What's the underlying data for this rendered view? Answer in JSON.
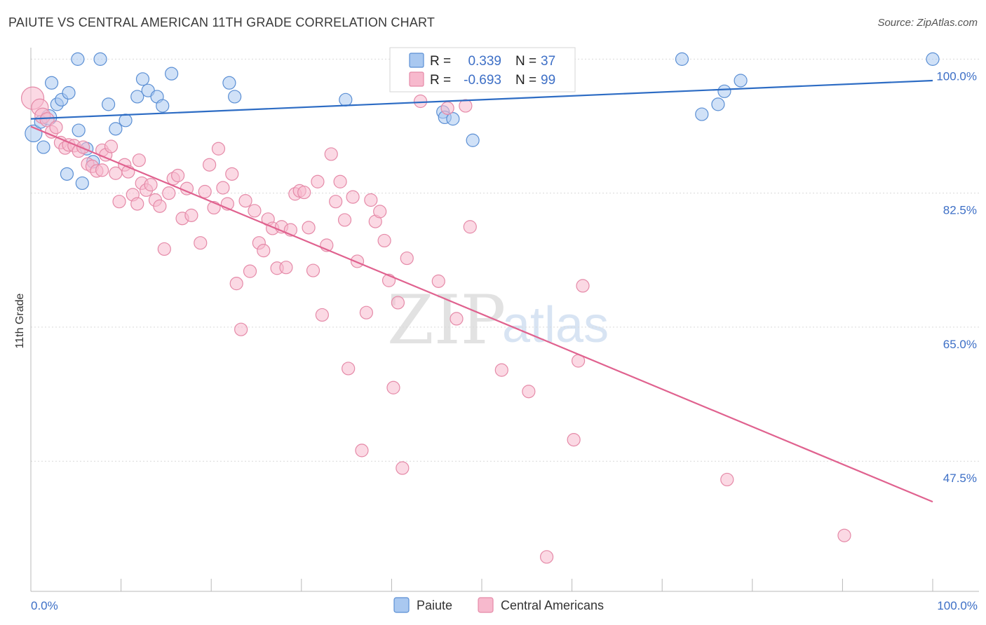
{
  "title": "PAIUTE VS CENTRAL AMERICAN 11TH GRADE CORRELATION CHART",
  "source": "Source: ZipAtlas.com",
  "watermark": {
    "zip": "ZIP",
    "atlas": "atlas"
  },
  "legend": {
    "r_label": "R =",
    "n_label": "N =",
    "paiute": {
      "r": "0.339",
      "n": "37"
    },
    "central": {
      "r": "-0.693",
      "n": "99"
    }
  },
  "colors": {
    "paiute_fill": "#a9c8f0",
    "paiute_stroke": "#5b8fd4",
    "paiute_line": "#2d6cc4",
    "central_fill": "#f7b9cd",
    "central_stroke": "#e58aa8",
    "central_line": "#e0628f",
    "tick_text": "#3d6fc6",
    "grid": "#d9d9d9"
  },
  "chart_data": {
    "type": "scatter",
    "title": "PAIUTE VS CENTRAL AMERICAN 11TH GRADE CORRELATION CHART",
    "xlabel": "",
    "ylabel": "11th Grade",
    "xlim": [
      0,
      100
    ],
    "ylim": [
      30.5,
      101.5
    ],
    "y_ticks": [
      100.0,
      82.5,
      65.0,
      47.5
    ],
    "y_tick_labels": [
      "100.0%",
      "82.5%",
      "65.0%",
      "47.5%"
    ],
    "x_tick_labels": [
      "0.0%",
      "100.0%"
    ],
    "bottom_legend": [
      "Paiute",
      "Central Americans"
    ],
    "series": [
      {
        "name": "Paiute",
        "r": 0.339,
        "n": 37,
        "trend": [
          [
            0,
            92.2
          ],
          [
            100,
            97.2
          ]
        ],
        "points": [
          [
            0.3,
            90.3,
            12
          ],
          [
            1.1,
            91.8,
            9
          ],
          [
            1.4,
            88.5,
            9
          ],
          [
            2.0,
            92.4,
            11
          ],
          [
            2.3,
            96.9,
            9
          ],
          [
            2.9,
            94.1,
            9
          ],
          [
            3.4,
            94.7,
            9
          ],
          [
            4.0,
            85.0,
            9
          ],
          [
            4.2,
            95.6,
            9
          ],
          [
            5.3,
            90.7,
            9
          ],
          [
            5.2,
            100.0,
            9
          ],
          [
            5.7,
            83.8,
            9
          ],
          [
            6.2,
            88.3,
            9
          ],
          [
            6.9,
            86.6,
            9
          ],
          [
            7.7,
            100.0,
            9
          ],
          [
            8.6,
            94.1,
            9
          ],
          [
            9.4,
            90.9,
            9
          ],
          [
            10.5,
            92.0,
            9
          ],
          [
            11.8,
            95.1,
            9
          ],
          [
            12.4,
            97.4,
            9
          ],
          [
            13.0,
            95.9,
            9
          ],
          [
            14.0,
            95.1,
            9
          ],
          [
            14.6,
            93.9,
            9
          ],
          [
            15.6,
            98.1,
            9
          ],
          [
            22.0,
            96.9,
            9
          ],
          [
            22.6,
            95.1,
            9
          ],
          [
            34.9,
            94.7,
            9
          ],
          [
            45.7,
            93.1,
            9
          ],
          [
            45.9,
            92.4,
            9
          ],
          [
            46.8,
            92.2,
            9
          ],
          [
            49.0,
            89.4,
            9
          ],
          [
            72.2,
            100.0,
            9
          ],
          [
            74.4,
            92.8,
            9
          ],
          [
            76.2,
            94.1,
            9
          ],
          [
            76.9,
            95.8,
            9
          ],
          [
            78.7,
            97.2,
            9
          ],
          [
            100.0,
            100.0,
            9
          ]
        ]
      },
      {
        "name": "Central Americans",
        "r": -0.693,
        "n": 99,
        "trend": [
          [
            0,
            91.2
          ],
          [
            100,
            42.2
          ]
        ],
        "points": [
          [
            0.2,
            94.9,
            16
          ],
          [
            1.0,
            93.7,
            12
          ],
          [
            1.3,
            92.6,
            11
          ],
          [
            1.8,
            92.1,
            10
          ],
          [
            2.3,
            90.5,
            9
          ],
          [
            2.8,
            91.1,
            9
          ],
          [
            3.3,
            89.1,
            9
          ],
          [
            3.8,
            88.4,
            9
          ],
          [
            4.2,
            88.8,
            9
          ],
          [
            4.8,
            88.7,
            9
          ],
          [
            5.3,
            88.0,
            9
          ],
          [
            5.8,
            88.5,
            9
          ],
          [
            6.3,
            86.3,
            9
          ],
          [
            6.8,
            86.0,
            9
          ],
          [
            7.3,
            85.4,
            9
          ],
          [
            7.9,
            88.1,
            9
          ],
          [
            8.3,
            87.5,
            9
          ],
          [
            8.9,
            88.6,
            9
          ],
          [
            9.4,
            85.1,
            9
          ],
          [
            9.8,
            81.4,
            9
          ],
          [
            10.4,
            86.2,
            9
          ],
          [
            10.8,
            85.3,
            9
          ],
          [
            11.3,
            82.3,
            9
          ],
          [
            11.8,
            81.1,
            9
          ],
          [
            12.3,
            83.8,
            9
          ],
          [
            12.8,
            82.9,
            9
          ],
          [
            13.3,
            83.6,
            9
          ],
          [
            13.8,
            81.6,
            9
          ],
          [
            14.3,
            80.8,
            9
          ],
          [
            14.8,
            75.2,
            9
          ],
          [
            15.3,
            82.5,
            9
          ],
          [
            15.8,
            84.4,
            9
          ],
          [
            16.3,
            84.8,
            9
          ],
          [
            16.8,
            79.2,
            9
          ],
          [
            17.3,
            83.1,
            9
          ],
          [
            17.8,
            79.6,
            9
          ],
          [
            18.8,
            76.0,
            9
          ],
          [
            19.3,
            82.7,
            9
          ],
          [
            19.8,
            86.2,
            9
          ],
          [
            20.3,
            80.6,
            9
          ],
          [
            20.8,
            88.3,
            9
          ],
          [
            21.3,
            83.2,
            9
          ],
          [
            21.8,
            81.1,
            9
          ],
          [
            22.3,
            85.0,
            9
          ],
          [
            22.8,
            70.7,
            9
          ],
          [
            23.3,
            64.7,
            9
          ],
          [
            23.8,
            81.5,
            9
          ],
          [
            24.3,
            72.3,
            9
          ],
          [
            24.8,
            80.2,
            9
          ],
          [
            25.3,
            76.0,
            9
          ],
          [
            25.8,
            75.0,
            9
          ],
          [
            26.3,
            79.1,
            9
          ],
          [
            26.8,
            77.9,
            9
          ],
          [
            27.3,
            72.7,
            9
          ],
          [
            27.8,
            78.1,
            9
          ],
          [
            28.3,
            72.8,
            9
          ],
          [
            28.8,
            77.7,
            9
          ],
          [
            29.3,
            82.4,
            9
          ],
          [
            29.8,
            82.8,
            9
          ],
          [
            30.3,
            82.6,
            9
          ],
          [
            30.8,
            78.0,
            9
          ],
          [
            31.3,
            72.4,
            9
          ],
          [
            31.8,
            84.0,
            9
          ],
          [
            32.3,
            66.6,
            9
          ],
          [
            32.8,
            75.7,
            9
          ],
          [
            33.3,
            87.6,
            9
          ],
          [
            33.8,
            81.4,
            9
          ],
          [
            34.3,
            84.0,
            9
          ],
          [
            34.8,
            79.0,
            9
          ],
          [
            35.2,
            59.6,
            9
          ],
          [
            35.7,
            82.0,
            9
          ],
          [
            36.2,
            73.6,
            9
          ],
          [
            36.7,
            48.9,
            9
          ],
          [
            37.2,
            66.9,
            9
          ],
          [
            37.7,
            81.6,
            9
          ],
          [
            38.2,
            78.8,
            9
          ],
          [
            38.7,
            80.1,
            9
          ],
          [
            39.2,
            76.3,
            9
          ],
          [
            39.7,
            71.1,
            9
          ],
          [
            40.2,
            57.1,
            9
          ],
          [
            40.7,
            68.2,
            9
          ],
          [
            41.2,
            46.6,
            9
          ],
          [
            41.7,
            74.0,
            9
          ],
          [
            43.2,
            94.5,
            9
          ],
          [
            45.2,
            71.0,
            9
          ],
          [
            46.2,
            93.6,
            9
          ],
          [
            47.2,
            66.1,
            9
          ],
          [
            48.2,
            93.9,
            9
          ],
          [
            48.7,
            78.1,
            9
          ],
          [
            52.2,
            59.4,
            9
          ],
          [
            55.2,
            56.6,
            9
          ],
          [
            57.2,
            35.0,
            9
          ],
          [
            60.2,
            50.3,
            9
          ],
          [
            60.7,
            60.6,
            9
          ],
          [
            61.2,
            70.4,
            9
          ],
          [
            77.2,
            45.1,
            9
          ],
          [
            90.2,
            37.8,
            9
          ],
          [
            7.9,
            85.5,
            9
          ],
          [
            12.0,
            86.8,
            9
          ]
        ]
      }
    ]
  }
}
